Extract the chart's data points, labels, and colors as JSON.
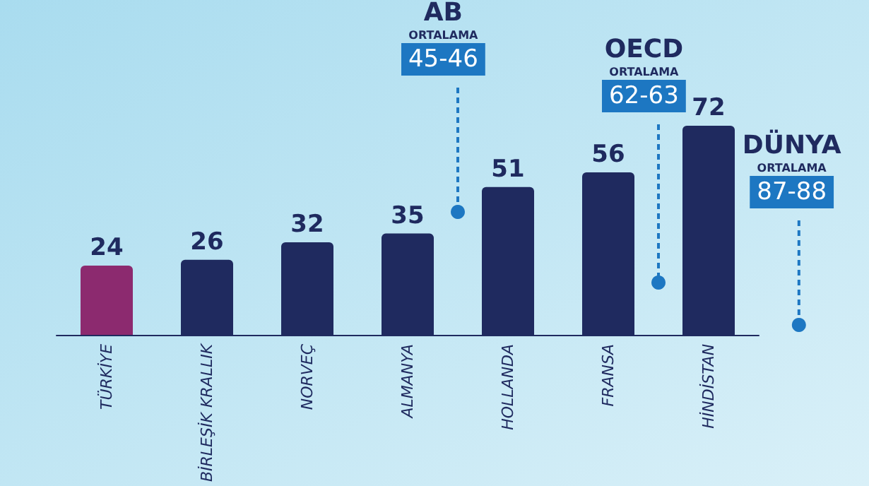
{
  "chart_data": {
    "type": "bar",
    "categories": [
      "TÜRKİYE",
      "BİRLEŞİK KRALLIK",
      "NORVEÇ",
      "ALMANYA",
      "HOLLANDA",
      "FRANSA",
      "HİNDİSTAN"
    ],
    "values": [
      24,
      26,
      32,
      35,
      51,
      56,
      72
    ],
    "colors": [
      "#8c2a6f",
      "#1f2a5f",
      "#1f2a5f",
      "#1f2a5f",
      "#1f2a5f",
      "#1f2a5f",
      "#1f2a5f"
    ],
    "data_labels": true,
    "annotations": [
      "AB\nORTALAMA\n45-46",
      "OECD\nORTALAMA\n62-63",
      "DÜNYA\nORTALAMA\n87-88"
    ]
  }
}
